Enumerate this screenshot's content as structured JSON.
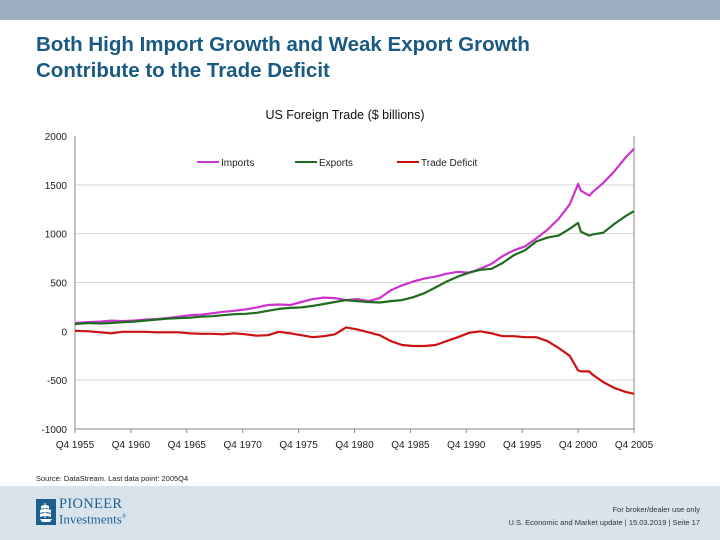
{
  "slide": {
    "title_line1": "Both High Import Growth and Weak Export Growth",
    "title_line2": "Contribute to the Trade Deficit",
    "source": "Source: DataStream. Last data point: 2005Q4"
  },
  "footer": {
    "logo_line1": "PIONEER",
    "logo_line2": "Investments",
    "logo_mark": "®",
    "disclaimer": "For broker/dealer use only",
    "info": "U.S. Economic and Market update | 15.03.2019 | Seite 17"
  },
  "colors": {
    "title": "#1a5a82",
    "imports": "#cc33cc",
    "exports": "#1f6b1f",
    "deficit": "#cc1111",
    "top_bar": "#9eadbf",
    "footer_bg": "#d9e3ec"
  },
  "chart_data": {
    "type": "line",
    "title": "US Foreign Trade ($ billions)",
    "xlabel": "",
    "ylabel": "",
    "ylim": [
      -1000,
      2000
    ],
    "xlim": [
      1955.75,
      2005.75
    ],
    "yticks": [
      2000,
      1500,
      1000,
      500,
      0,
      -500,
      -1000
    ],
    "ytick_labels": [
      "2000",
      "1500",
      "1000",
      "500",
      "0",
      "-500",
      "-1000"
    ],
    "xticks": [
      1955.75,
      1960.75,
      1965.75,
      1970.75,
      1975.75,
      1980.75,
      1985.75,
      1990.75,
      1995.75,
      2000.75,
      2005.75
    ],
    "xtick_labels": [
      "Q4 1955",
      "Q4 1960",
      "Q4 1965",
      "Q4 1970",
      "Q4 1975",
      "Q4 1980",
      "Q4 1985",
      "Q4 1990",
      "Q4 1995",
      "Q4 2000",
      "Q4 2005"
    ],
    "grid": "horizontal",
    "legend_position": "top-center",
    "x": [
      1955.75,
      1957,
      1958,
      1959,
      1960,
      1961,
      1962,
      1963,
      1964,
      1965,
      1966,
      1967,
      1968,
      1969,
      1970,
      1971,
      1972,
      1973,
      1974,
      1975,
      1976,
      1977,
      1978,
      1979,
      1980,
      1981,
      1982,
      1983,
      1984,
      1985,
      1986,
      1987,
      1988,
      1989,
      1990,
      1991,
      1992,
      1993,
      1994,
      1995,
      1996,
      1997,
      1998,
      1999,
      2000,
      2000.75,
      2001,
      2001.75,
      2002,
      2003,
      2004,
      2005,
      2005.75
    ],
    "series": [
      {
        "name": "Imports",
        "color": "#cc33cc",
        "values": [
          85,
          95,
          100,
          110,
          105,
          110,
          120,
          125,
          135,
          150,
          165,
          170,
          185,
          200,
          210,
          225,
          245,
          270,
          275,
          270,
          300,
          330,
          345,
          340,
          320,
          330,
          310,
          340,
          420,
          470,
          510,
          540,
          560,
          590,
          610,
          600,
          640,
          690,
          770,
          830,
          870,
          950,
          1040,
          1150,
          1300,
          1510,
          1440,
          1390,
          1420,
          1520,
          1640,
          1780,
          1870
        ]
      },
      {
        "name": "Exports",
        "color": "#1f6b1f",
        "values": [
          75,
          85,
          80,
          85,
          95,
          100,
          110,
          120,
          130,
          135,
          140,
          150,
          155,
          165,
          175,
          180,
          190,
          210,
          230,
          240,
          245,
          260,
          280,
          300,
          320,
          310,
          300,
          295,
          310,
          320,
          350,
          390,
          450,
          510,
          560,
          600,
          630,
          640,
          700,
          780,
          830,
          920,
          960,
          980,
          1050,
          1110,
          1020,
          980,
          990,
          1010,
          1100,
          1180,
          1230
        ]
      },
      {
        "name": "Trade Deficit",
        "color": "#cc1111",
        "values": [
          5,
          0,
          -10,
          -20,
          -5,
          -5,
          -5,
          -10,
          -10,
          -10,
          -20,
          -25,
          -25,
          -30,
          -20,
          -30,
          -45,
          -40,
          -5,
          -20,
          -40,
          -60,
          -50,
          -30,
          40,
          20,
          -10,
          -40,
          -100,
          -140,
          -150,
          -150,
          -140,
          -100,
          -60,
          -15,
          0,
          -20,
          -50,
          -50,
          -60,
          -60,
          -100,
          -170,
          -250,
          -400,
          -410,
          -410,
          -440,
          -520,
          -580,
          -620,
          -640
        ]
      }
    ]
  }
}
